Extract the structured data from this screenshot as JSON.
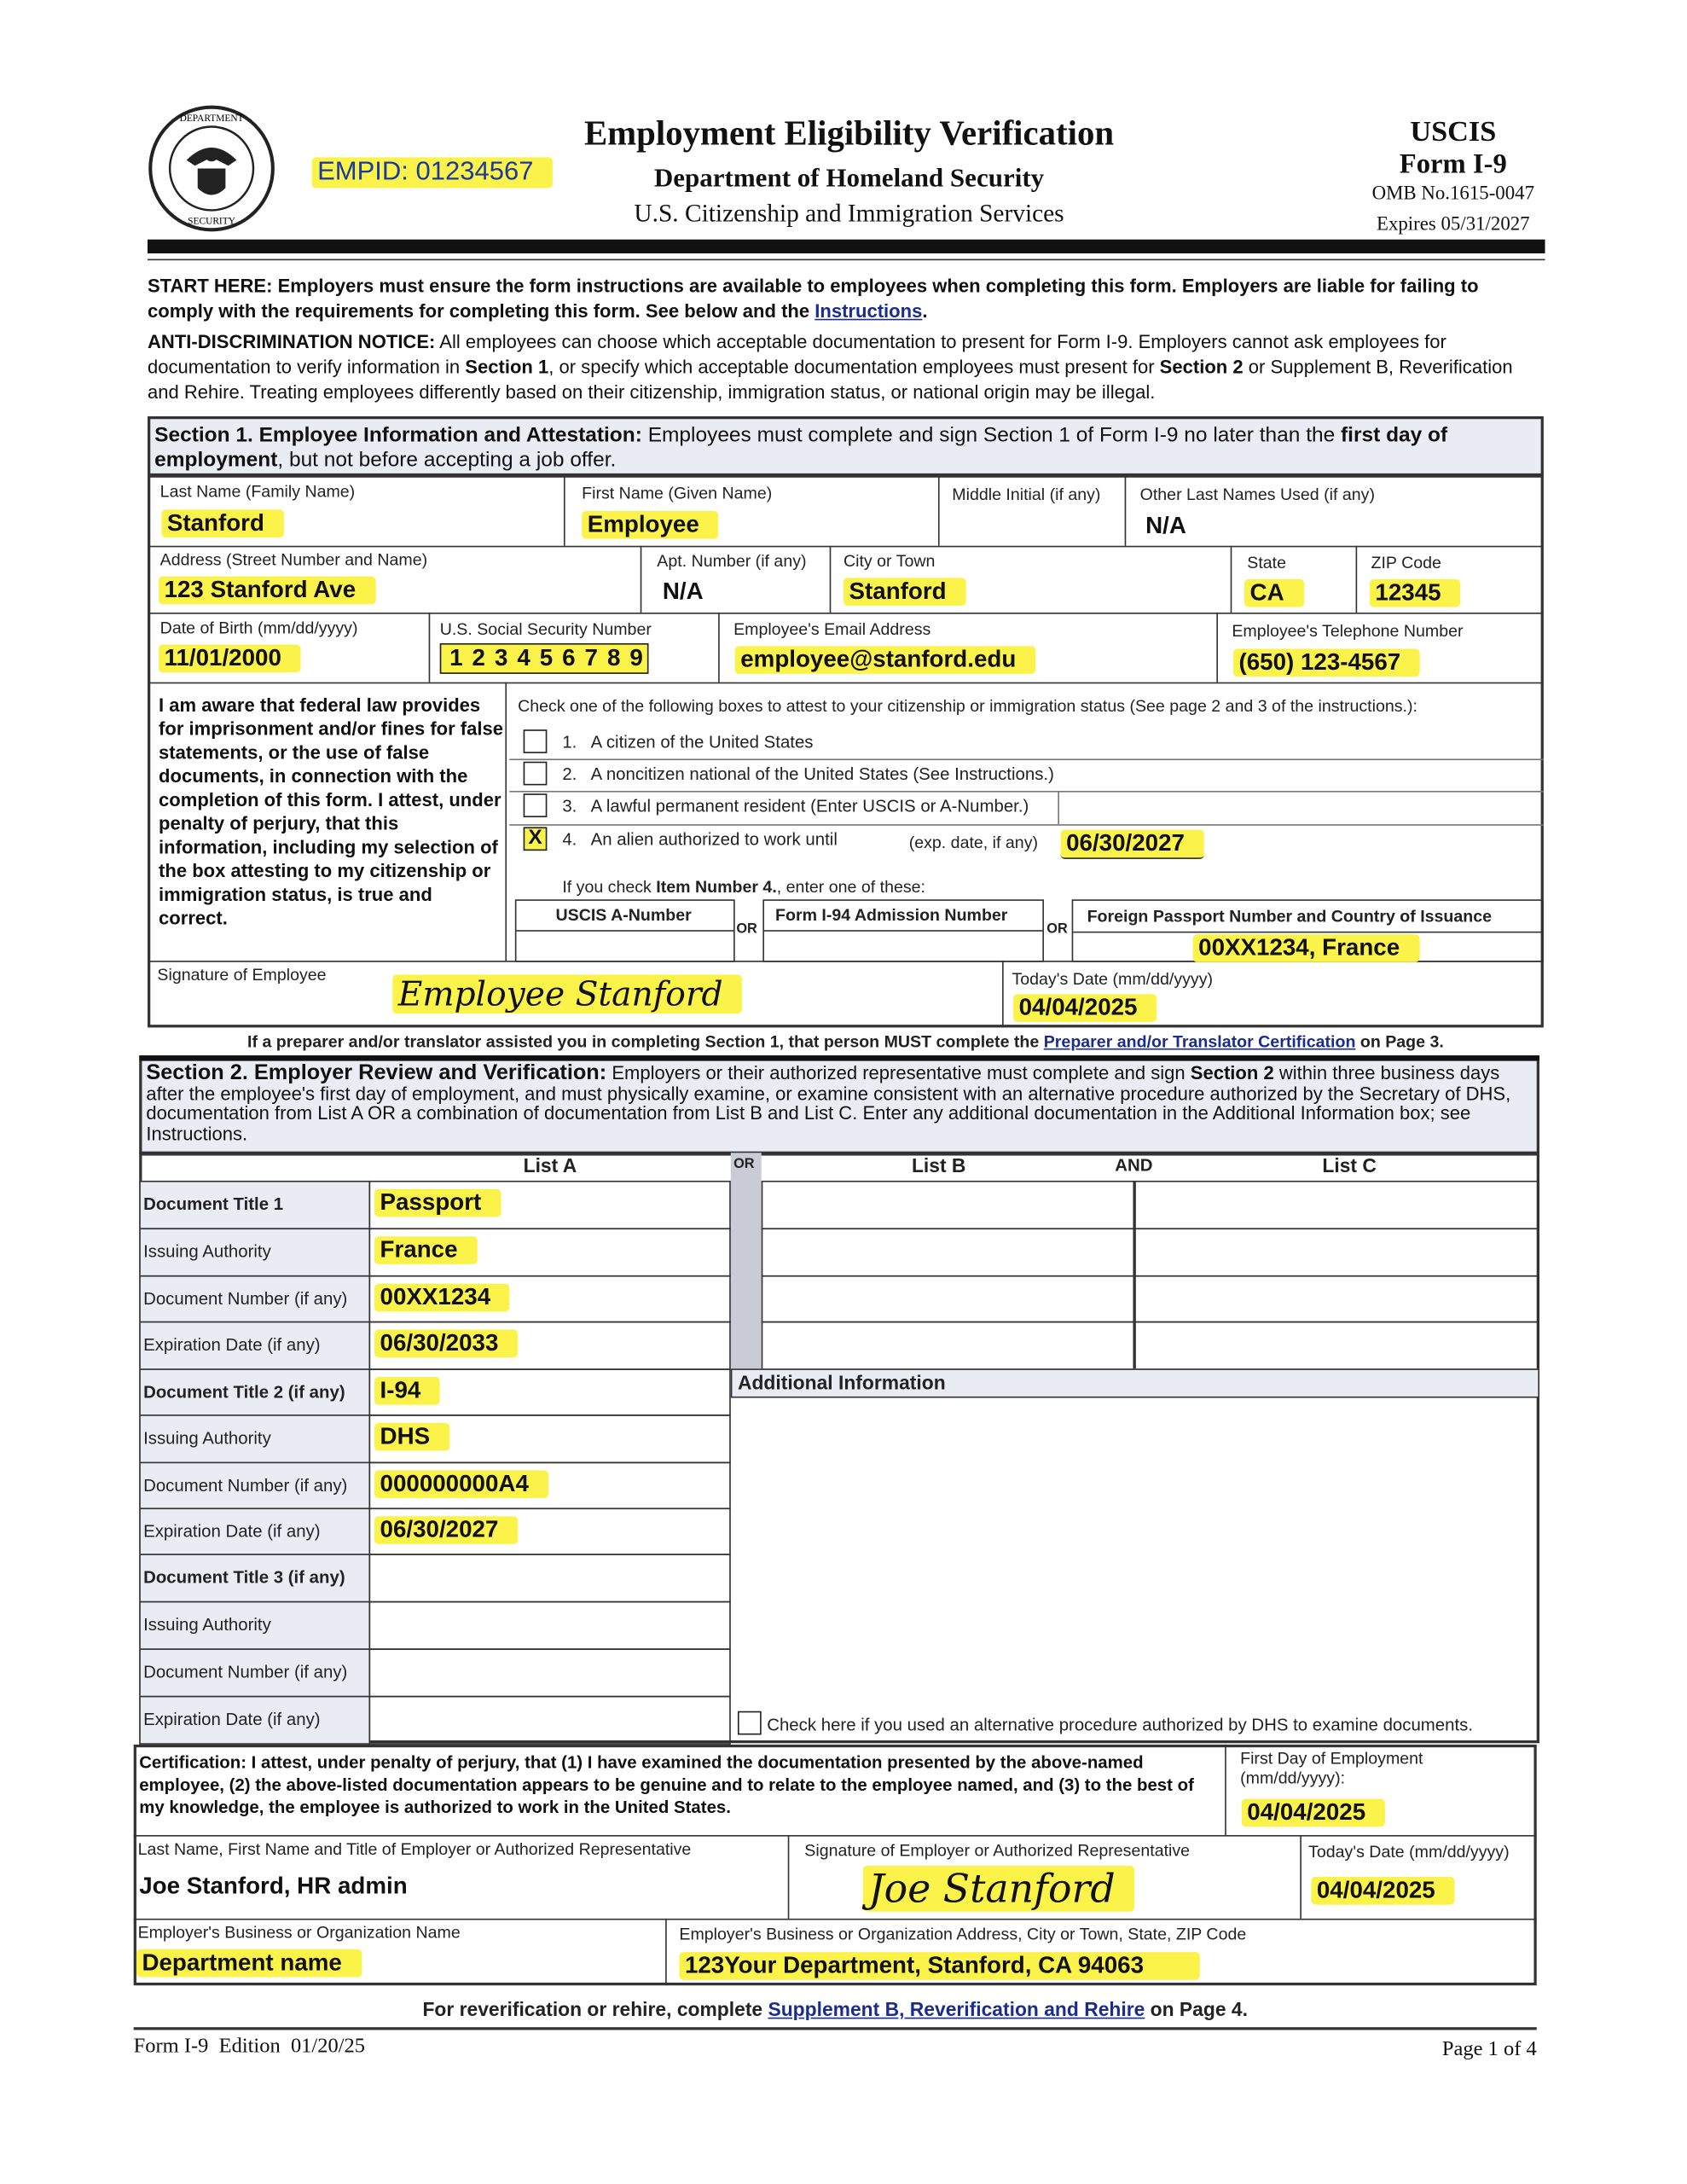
{
  "header": {
    "empid": "EMPID: 01234567",
    "title": "Employment Eligibility Verification",
    "department": "Department of Homeland Security",
    "agency": "U.S. Citizenship and Immigration Services",
    "uscis": "USCIS",
    "form": "Form I-9",
    "omb": "OMB No.1615-0047",
    "expires": "Expires 05/31/2027",
    "seal_text": "U.S. DEPARTMENT OF HOMELAND SECURITY"
  },
  "notices": {
    "start_bold": "START HERE:  Employers must ensure the form instructions are available to employees when completing this form.  Employers are liable for failing to comply with the requirements for completing this form.  See below and the ",
    "instructions_link": "Instructions",
    "anti_label": "ANTI-DISCRIMINATION NOTICE:",
    "anti_1": "  All employees can choose which acceptable documentation to present for Form I-9.  Employers cannot ask employees for documentation to verify information in ",
    "anti_s1": "Section 1",
    "anti_2": ", or specify which acceptable documentation employees must present for ",
    "anti_s2": "Section 2",
    "anti_3": " or Supplement B, Reverification and Rehire.  Treating employees differently based on their citizenship, immigration status, or national origin may be illegal."
  },
  "section1": {
    "title": "Section 1. Employee Information and Attestation:",
    "desc": " Employees must complete and sign Section 1 of Form I-9 no later than the ",
    "desc_bold": "first day of employment",
    "desc_end": ", but not before accepting a job offer.",
    "last_name": {
      "label": "Last Name (Family Name)",
      "value": "Stanford"
    },
    "first_name": {
      "label": "First Name (Given Name)",
      "value": "Employee"
    },
    "middle_initial": {
      "label": "Middle Initial (if any)",
      "value": ""
    },
    "other_names": {
      "label": "Other Last Names Used (if any)",
      "value": "N/A"
    },
    "address": {
      "label": "Address (Street Number and Name)",
      "value": "123 Stanford Ave"
    },
    "apt": {
      "label": "Apt. Number (if any)",
      "value": "N/A"
    },
    "city": {
      "label": "City or Town",
      "value": "Stanford"
    },
    "state": {
      "label": "State",
      "value": "CA"
    },
    "zip": {
      "label": "ZIP Code",
      "value": "12345"
    },
    "dob": {
      "label": "Date of Birth (mm/dd/yyyy)",
      "value": "11/01/2000"
    },
    "ssn": {
      "label": "U.S. Social Security Number",
      "value": "1 2 3 4 5 6 7 8 9"
    },
    "email": {
      "label": "Employee's Email Address",
      "value": "employee@stanford.edu"
    },
    "phone": {
      "label": "Employee's Telephone Number",
      "value": "(650) 123-4567"
    },
    "attest_text": "I am aware that federal law provides for imprisonment and/or fines for false statements, or the use of false documents, in connection with the completion of this form.  I attest, under penalty of perjury, that this information, including my selection of the box attesting to my citizenship or immigration status, is true and correct.",
    "check_intro": "Check one of the following boxes to attest to your citizenship or immigration status (See page 2 and 3 of the instructions.):",
    "options": [
      {
        "num": "1.",
        "label": "A citizen of the United States",
        "checked": false
      },
      {
        "num": "2.",
        "label": "A noncitizen national of the United States (See Instructions.)",
        "checked": false
      },
      {
        "num": "3.",
        "label": "A lawful permanent resident (Enter USCIS or A-Number.)",
        "checked": false
      },
      {
        "num": "4.",
        "label": "An alien authorized to work until",
        "checked": true
      }
    ],
    "check_mark": "X",
    "exp_label": "(exp. date, if any)",
    "exp_value": "06/30/2027",
    "item4_note_a": "If you check ",
    "item4_note_b": "Item Number 4.",
    "item4_note_c": ", enter one of these:",
    "uscis_a_number": {
      "label": "USCIS A-Number",
      "value": ""
    },
    "i94": {
      "label": "Form I-94 Admission Number",
      "value": ""
    },
    "passport": {
      "label": "Foreign Passport Number and Country of Issuance",
      "value": "00XX1234, France"
    },
    "or": "OR",
    "signature": {
      "label": "Signature of Employee",
      "value": "Employee Stanford"
    },
    "today": {
      "label": "Today's Date (mm/dd/yyyy)",
      "value": "04/04/2025"
    },
    "preparer_note": "If a preparer and/or translator assisted you in completing Section 1, that person MUST complete the ",
    "preparer_link": "Preparer and/or Translator Certification",
    "preparer_end": " on Page 3."
  },
  "section2": {
    "title": "Section 2. Employer Review and Verification:",
    "desc": " Employers or their authorized representative must complete and sign ",
    "desc_bold": "Section 2",
    "desc_end": " within three business days after the employee's first day of employment, and must physically examine, or examine consistent with an alternative procedure authorized by the Secretary of DHS, documentation from List A OR a combination of documentation from List B and List C.  Enter any additional documentation in the Additional Information box; see Instructions.",
    "list_a": "List A",
    "or": "OR",
    "list_b": "List B",
    "and": "AND",
    "list_c": "List C",
    "rows": [
      {
        "label": "Document Title 1",
        "value": "Passport",
        "bold": true
      },
      {
        "label": "Issuing Authority",
        "value": "France"
      },
      {
        "label": "Document Number (if any)",
        "value": "00XX1234"
      },
      {
        "label": "Expiration Date (if any)",
        "value": "06/30/2033"
      },
      {
        "label": "Document Title 2 (if any)",
        "value": "I-94",
        "bold": true
      },
      {
        "label": "Issuing Authority",
        "value": "DHS"
      },
      {
        "label": "Document Number (if any)",
        "value": "000000000A4"
      },
      {
        "label": "Expiration Date (if any)",
        "value": "06/30/2027"
      },
      {
        "label": "Document Title 3 (if any)",
        "value": "",
        "bold": true
      },
      {
        "label": "Issuing Authority",
        "value": ""
      },
      {
        "label": "Document Number (if any)",
        "value": ""
      },
      {
        "label": "Expiration Date (if any)",
        "value": ""
      }
    ],
    "additional_info": "Additional Information",
    "alt_procedure": "Check here if you used an alternative procedure authorized by DHS to examine documents.",
    "certification": "Certification:  I attest, under penalty of perjury, that (1) I have examined the documentation presented by the above-named employee, (2) the above-listed documentation appears to be genuine and to relate to the employee named, and (3) to the best of my knowledge, the employee is authorized to work in the United States.",
    "first_day": {
      "label": "First Day of Employment (mm/dd/yyyy):",
      "value": "04/04/2025"
    },
    "rep_name": {
      "label": "Last Name, First Name and Title of Employer or Authorized Representative",
      "value": "Joe Stanford, HR admin"
    },
    "rep_signature": {
      "label": "Signature of Employer or Authorized Representative",
      "value": "Joe Stanford"
    },
    "rep_date": {
      "label": "Today's Date (mm/dd/yyyy)",
      "value": "04/04/2025"
    },
    "org_name": {
      "label": "Employer's Business or Organization Name",
      "value": "Department name"
    },
    "org_address": {
      "label": "Employer's Business or Organization Address, City or Town, State, ZIP Code",
      "value": "123Your Department, Stanford, CA 94063"
    }
  },
  "footer": {
    "rever_a": "For reverification or rehire, complete ",
    "rever_link": "Supplement B, Reverification and Rehire",
    "rever_b": " on Page 4.",
    "edition": "Form I-9  Edition  01/20/25",
    "page": "Page 1 of 4"
  },
  "colors": {
    "highlight": "#fbf24a",
    "link": "#1a2d8f",
    "section_bg": "#e9ecf3"
  }
}
